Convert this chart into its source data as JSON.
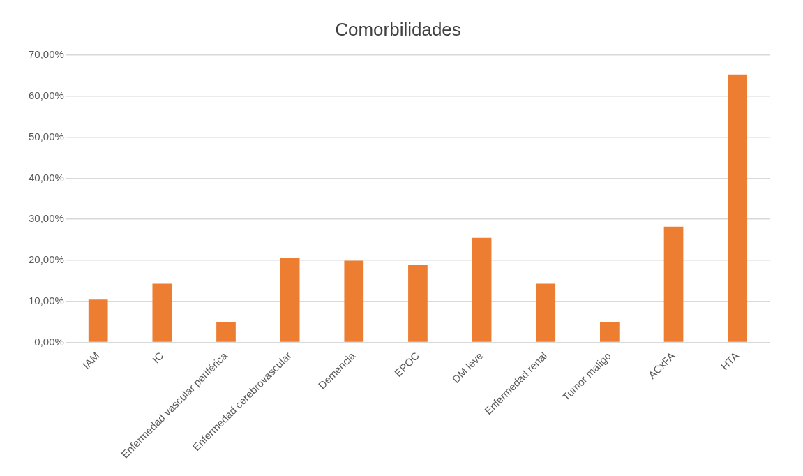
{
  "chart_data": {
    "type": "bar",
    "title": "Comorbilidades",
    "categories": [
      "IAM",
      "IC",
      "Enfermedad vascular periférica",
      "Enfermedad cerebrovascular",
      "Demencia",
      "EPOC",
      "DM leve",
      "Enfermedad renal",
      "Tumor maligo",
      "ACxFA",
      "HTA"
    ],
    "values": [
      10.4,
      14.3,
      4.9,
      20.6,
      19.9,
      18.8,
      25.5,
      14.3,
      4.9,
      28.2,
      65.3
    ],
    "color": "#ed7d31",
    "ylim": [
      0,
      70
    ],
    "yticks": [
      {
        "value": 0,
        "label": "0,00%"
      },
      {
        "value": 10,
        "label": "10,00%"
      },
      {
        "value": 20,
        "label": "20,00%"
      },
      {
        "value": 30,
        "label": "30,00%"
      },
      {
        "value": 40,
        "label": "40,00%"
      },
      {
        "value": 50,
        "label": "50,00%"
      },
      {
        "value": 60,
        "label": "60,00%"
      },
      {
        "value": 70,
        "label": "70,00%"
      }
    ],
    "grid": "y",
    "legend": false
  }
}
